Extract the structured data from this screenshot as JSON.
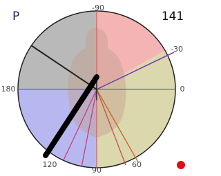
{
  "header": {
    "mode": "P",
    "reading": "141"
  },
  "dial": {
    "angle_labels": [
      "-90",
      "-30",
      "0",
      "180",
      "120",
      "90",
      "60"
    ]
  }
}
